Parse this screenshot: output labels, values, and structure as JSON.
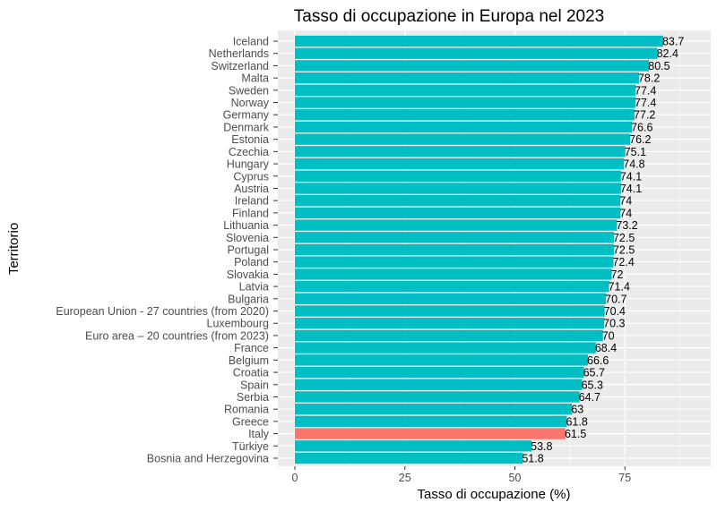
{
  "chart_data": {
    "type": "bar",
    "orientation": "horizontal",
    "title": "Tasso di occupazione in Europa nel 2023",
    "xlabel": "Tasso di occupazione (%)",
    "ylabel": "Territorio",
    "xlim": [
      0,
      90
    ],
    "xticks": [
      0,
      25,
      50,
      75
    ],
    "grid": true,
    "colors": {
      "default": "#00bfc4",
      "highlight": "#f8766d",
      "panel": "#ebebeb",
      "grid": "#ffffff"
    },
    "highlight": "Italy",
    "categories": [
      "Iceland",
      "Netherlands",
      "Switzerland",
      "Malta",
      "Sweden",
      "Norway",
      "Germany",
      "Denmark",
      "Estonia",
      "Czechia",
      "Hungary",
      "Cyprus",
      "Austria",
      "Ireland",
      "Finland",
      "Lithuania",
      "Slovenia",
      "Portugal",
      "Poland",
      "Slovakia",
      "Latvia",
      "Bulgaria",
      "European Union - 27 countries (from 2020)",
      "Luxembourg",
      "Euro area – 20 countries (from 2023)",
      "France",
      "Belgium",
      "Croatia",
      "Spain",
      "Serbia",
      "Romania",
      "Greece",
      "Italy",
      "Türkiye",
      "Bosnia and Herzegovina"
    ],
    "values": [
      83.7,
      82.4,
      80.5,
      78.2,
      77.4,
      77.4,
      77.2,
      76.6,
      76.2,
      75.1,
      74.8,
      74.1,
      74.1,
      74,
      74,
      73.2,
      72.5,
      72.5,
      72.4,
      72,
      71.4,
      70.7,
      70.4,
      70.3,
      70,
      68.4,
      66.6,
      65.7,
      65.3,
      64.7,
      63,
      61.8,
      61.5,
      53.8,
      51.8
    ]
  }
}
